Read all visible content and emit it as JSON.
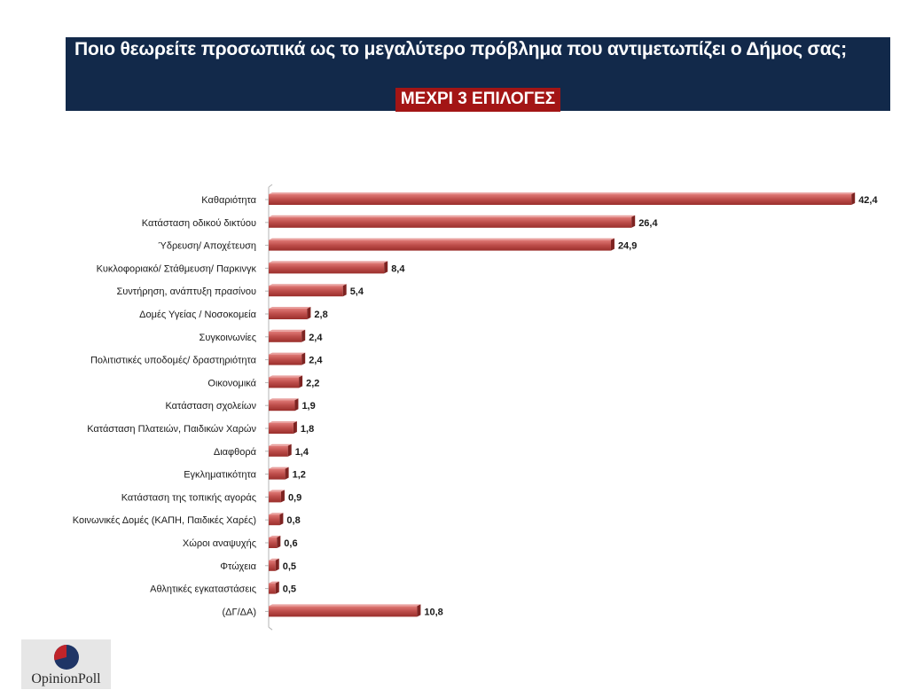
{
  "header": {
    "title": "Ποιο θεωρείτε προσωπικά ως το μεγαλύτερο πρόβλημα που αντιμετωπίζει ο Δήμος σας;",
    "subtitle": "ΜΕΧΡΙ 3 ΕΠΙΛΟΓΕΣ"
  },
  "chart_data": {
    "type": "bar",
    "orientation": "horizontal",
    "categories": [
      "Καθαριότητα",
      "Κατάσταση οδικού δικτύου",
      "Ύδρευση/ Αποχέτευση",
      "Κυκλοφοριακό/ Στάθμευση/ Παρκινγκ",
      "Συντήρηση, ανάπτυξη πρασίνου",
      "Δομές Υγείας / Νοσοκομεία",
      "Συγκοινωνίες",
      "Πολιτιστικές υποδομές/ δραστηριότητα",
      "Οικονομικά",
      "Κατάσταση σχολείων",
      "Κατάσταση Πλατειών, Παιδικών Χαρών",
      "Διαφθορά",
      "Εγκληματικότητα",
      "Κατάσταση της τοπικής αγοράς",
      "Κοινωνικές Δομές (ΚΑΠΗ, Παιδικές Χαρές)",
      "Χώροι αναψυχής",
      "Φτώχεια",
      "Αθλητικές εγκαταστάσεις",
      "(ΔΓ/ΔΑ)"
    ],
    "values": [
      42.4,
      26.4,
      24.9,
      8.4,
      5.4,
      2.8,
      2.4,
      2.4,
      2.2,
      1.9,
      1.8,
      1.4,
      1.2,
      0.9,
      0.8,
      0.6,
      0.5,
      0.5,
      10.8
    ],
    "value_labels": [
      "42,4",
      "26,4",
      "24,9",
      "8,4",
      "5,4",
      "2,8",
      "2,4",
      "2,4",
      "2,2",
      "1,9",
      "1,8",
      "1,4",
      "1,2",
      "0,9",
      "0,8",
      "0,6",
      "0,5",
      "0,5",
      "10,8"
    ],
    "bar_color": "#c0504d",
    "grid": false
  },
  "logo": {
    "text": "OpinionPoll",
    "colors": {
      "red": "#c0242a",
      "navy": "#1f3566"
    }
  },
  "colors": {
    "title_bg": "#12294a",
    "subtitle_bg": "#a31515"
  }
}
